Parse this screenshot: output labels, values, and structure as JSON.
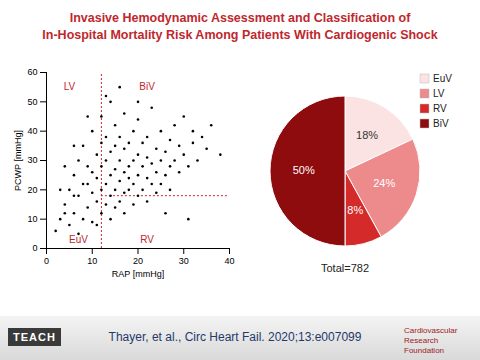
{
  "title": [
    "Invasive Hemodynamic Assessment and Classification of",
    "In-Hospital Mortality Risk Among Patients With Cardiogenic Shock"
  ],
  "footer": {
    "citation": "Thayer, et al., Circ Heart Fail. 2020;13:e007099",
    "logos": [
      "TEACH",
      "Cardiovascular Research Foundation"
    ]
  },
  "chart_data": [
    {
      "type": "scatter",
      "x_label": "RAP [mmHg]",
      "y_label": "PCWP [mmHg]",
      "color": "#000000",
      "marker": "circle",
      "xlim": [
        0,
        40
      ],
      "xticks": [
        0,
        10,
        20,
        30,
        40
      ],
      "ylim": [
        0,
        60
      ],
      "yticks": [
        0,
        10,
        20,
        30,
        40,
        50,
        60
      ],
      "x": [
        3,
        4,
        5,
        5,
        6,
        6,
        7,
        7,
        8,
        8,
        8,
        9,
        9,
        10,
        10,
        10,
        10,
        11,
        11,
        11,
        12,
        12,
        12,
        12,
        13,
        13,
        13,
        13,
        14,
        14,
        14,
        14,
        14,
        15,
        15,
        15,
        15,
        15,
        16,
        16,
        16,
        16,
        17,
        17,
        17,
        17,
        17,
        18,
        18,
        18,
        18,
        19,
        19,
        19,
        19,
        20,
        20,
        20,
        20,
        21,
        21,
        21,
        22,
        22,
        22,
        22,
        23,
        23,
        23,
        24,
        24,
        24,
        25,
        25,
        25,
        26,
        26,
        27,
        27,
        27,
        28,
        28,
        29,
        29,
        30,
        30,
        31,
        32,
        32,
        33,
        34,
        35,
        36,
        38,
        2,
        3,
        4,
        6,
        9,
        7,
        11,
        13,
        16,
        20,
        31,
        26,
        4,
        6,
        9,
        12
      ],
      "values": [
        10,
        15,
        8,
        20,
        12,
        25,
        18,
        30,
        10,
        22,
        35,
        14,
        28,
        9,
        19,
        26,
        40,
        16,
        24,
        32,
        12,
        20,
        28,
        45,
        15,
        22,
        30,
        38,
        10,
        18,
        25,
        33,
        50,
        14,
        20,
        27,
        35,
        42,
        16,
        23,
        30,
        38,
        12,
        19,
        26,
        34,
        46,
        20,
        28,
        36,
        24,
        15,
        22,
        30,
        40,
        18,
        25,
        32,
        44,
        20,
        28,
        36,
        16,
        24,
        31,
        38,
        22,
        29,
        48,
        19,
        26,
        34,
        22,
        30,
        40,
        25,
        33,
        20,
        28,
        37,
        30,
        42,
        26,
        35,
        32,
        45,
        28,
        36,
        40,
        30,
        38,
        34,
        42,
        32,
        6,
        20,
        28,
        35,
        45,
        5,
        8,
        52,
        55,
        50,
        10,
        12,
        12,
        18,
        22,
        36
      ],
      "reference_lines": {
        "x": 12,
        "y": 18
      },
      "annotations": [
        {
          "text": "LV",
          "x": 5,
          "y": 55
        },
        {
          "text": "BiV",
          "x": 22,
          "y": 55
        },
        {
          "text": "EuV",
          "x": 7,
          "y": 3
        },
        {
          "text": "RV",
          "x": 22,
          "y": 3
        }
      ]
    },
    {
      "type": "pie",
      "categories": [
        "EuV",
        "LV",
        "RV",
        "BiV"
      ],
      "values": [
        18,
        24,
        8,
        50
      ],
      "value_labels": [
        "18%",
        "24%",
        "8%",
        "50%"
      ],
      "data_labels": true,
      "colors": [
        "#fbe3e3",
        "#ec8a8c",
        "#d42a2a",
        "#8e0b0e"
      ],
      "legend": "right",
      "annotation": "Total=782"
    }
  ]
}
